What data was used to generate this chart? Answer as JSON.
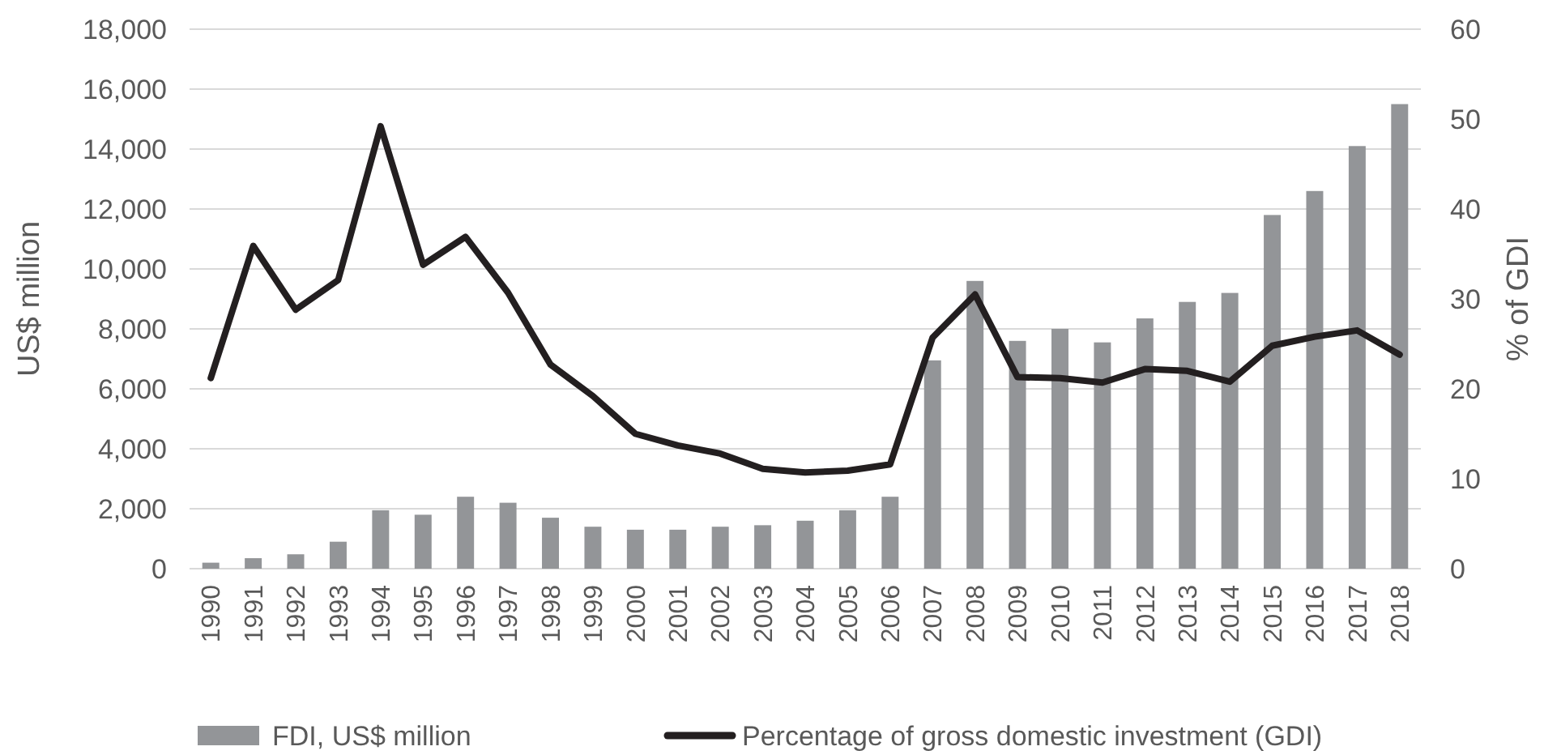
{
  "chart_data": {
    "type": "bar",
    "ylabel": "US$ million",
    "y2label": "% of GDI",
    "categories": [
      "1990",
      "1991",
      "1992",
      "1993",
      "1994",
      "1995",
      "1996",
      "1997",
      "1998",
      "1999",
      "2000",
      "2001",
      "2002",
      "2003",
      "2004",
      "2005",
      "2006",
      "2007",
      "2008",
      "2009",
      "2010",
      "2011",
      "2012",
      "2013",
      "2014",
      "2015",
      "2016",
      "2017",
      "2018"
    ],
    "series": [
      {
        "name": "FDI, US$ million",
        "color": "#939598",
        "values": [
          200,
          350,
          480,
          900,
          1950,
          1800,
          2400,
          2200,
          1700,
          1400,
          1300,
          1300,
          1400,
          1450,
          1600,
          1950,
          2400,
          6950,
          9600,
          7600,
          8000,
          7550,
          8350,
          8900,
          9200,
          11800,
          12600,
          14100,
          15500
        ]
      },
      {
        "name": "Percentage of gross domestic investment (GDI)",
        "type": "line",
        "axis": "y2",
        "color": "#231f20",
        "values": [
          21.2,
          35.9,
          28.8,
          32.1,
          49.2,
          33.8,
          36.9,
          30.7,
          22.7,
          19.2,
          15,
          13.7,
          12.8,
          11.1,
          10.7,
          10.9,
          11.6,
          25.7,
          30.5,
          21.3,
          21.2,
          20.7,
          22.2,
          22,
          20.8,
          24.8,
          25.8,
          26.5,
          23.8
        ]
      }
    ],
    "ylim": [
      0,
      18000
    ],
    "yticks": [
      {
        "value": 0,
        "label": "0"
      },
      {
        "value": 2000,
        "label": "2,000"
      },
      {
        "value": 4000,
        "label": "4,000"
      },
      {
        "value": 6000,
        "label": "6,000"
      },
      {
        "value": 8000,
        "label": "8,000"
      },
      {
        "value": 10000,
        "label": "10,000"
      },
      {
        "value": 12000,
        "label": "12,000"
      },
      {
        "value": 14000,
        "label": "14,000"
      },
      {
        "value": 16000,
        "label": "16,000"
      },
      {
        "value": 18000,
        "label": "18,000"
      }
    ],
    "y2lim": [
      0,
      60
    ],
    "y2ticks": [
      0,
      10,
      20,
      30,
      40,
      50,
      60
    ],
    "grid": "y",
    "legend": "bottom"
  }
}
